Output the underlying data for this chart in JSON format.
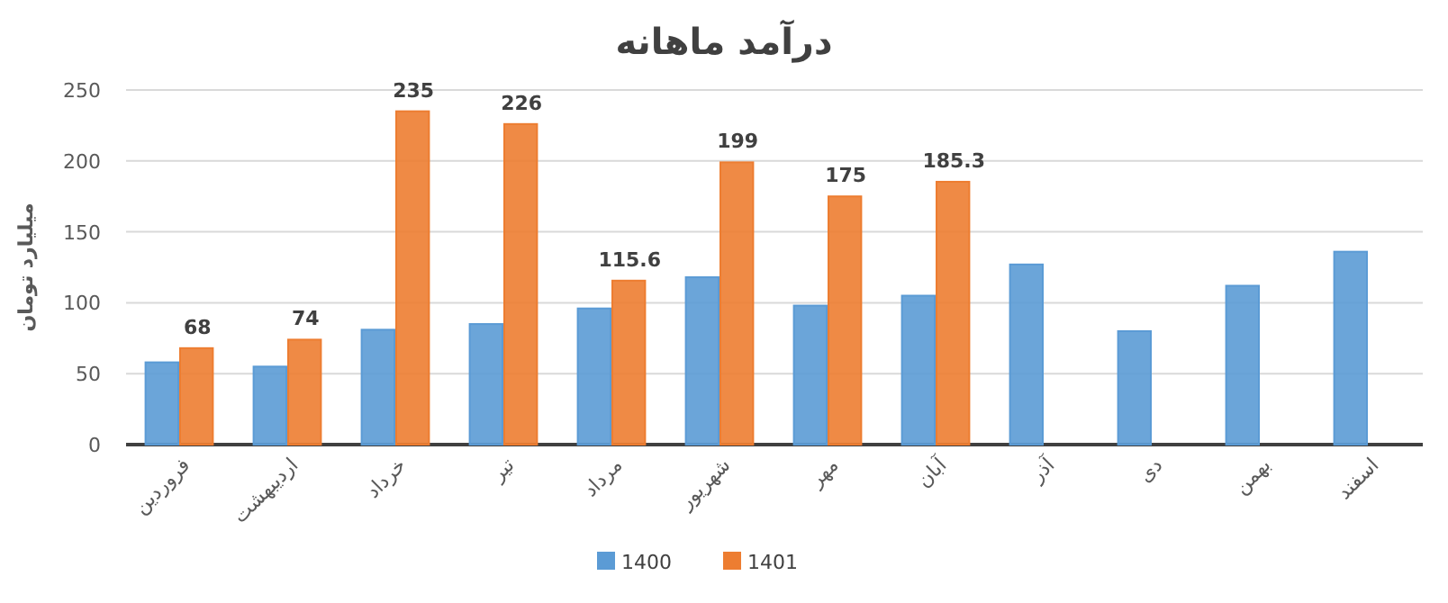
{
  "chart_data": {
    "type": "bar",
    "title": "درآمد ماهانه",
    "ylabel": "میلیارد تومان",
    "categories": [
      "فروردین",
      "اردیبهشت",
      "خرداد",
      "تیر",
      "مرداد",
      "شهریور",
      "مهر",
      "آبان",
      "آذر",
      "دی",
      "بهمن",
      "اسفند"
    ],
    "series": [
      {
        "name": "1400",
        "color": "#5b9bd5",
        "values": [
          58,
          55,
          81,
          85,
          96,
          118,
          98,
          105,
          127,
          80,
          112,
          136
        ]
      },
      {
        "name": "1401",
        "color": "#ed7d31",
        "values": [
          68,
          74,
          235,
          226,
          115.6,
          199,
          175,
          185.3,
          null,
          null,
          null,
          null
        ],
        "value_labels": [
          "68",
          "74",
          "235",
          "226",
          "115.6",
          "199",
          "175",
          "185.3",
          null,
          null,
          null,
          null
        ]
      }
    ],
    "ylim": [
      0,
      250
    ],
    "yticks": [
      0,
      50,
      100,
      150,
      200,
      250
    ],
    "grid": "y",
    "legend": "bottom"
  }
}
